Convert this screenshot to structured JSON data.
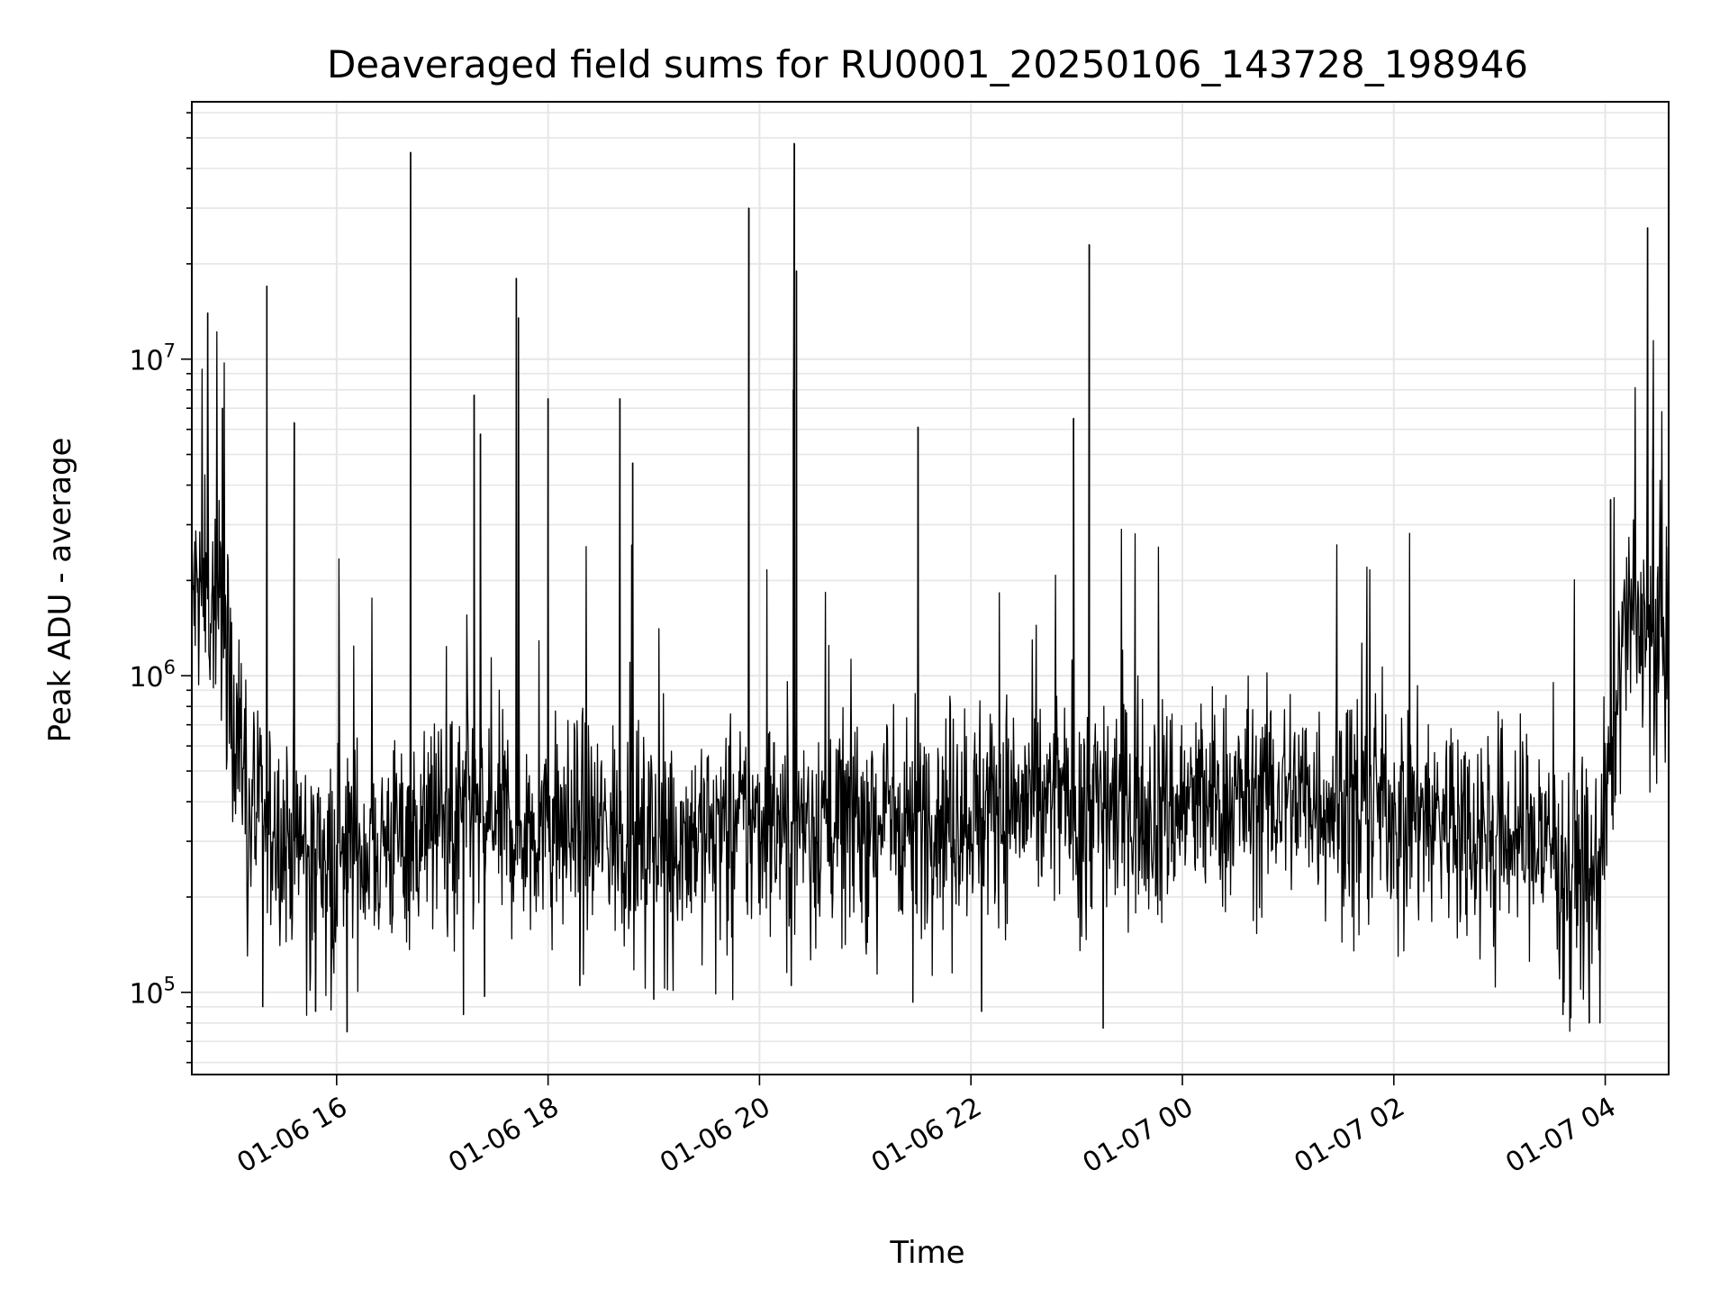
{
  "chart_data": {
    "type": "line",
    "title": "Deaveraged field sums for RU0001_20250106_143728_198946",
    "xlabel": "Time",
    "ylabel": "Peak ADU - average",
    "yscale": "log",
    "ylim": [
      55000,
      65000000
    ],
    "xlim_hours": [
      14.63,
      28.6
    ],
    "x_ticks": [
      {
        "hour": 16,
        "label": "01-06 16"
      },
      {
        "hour": 18,
        "label": "01-06 18"
      },
      {
        "hour": 20,
        "label": "01-06 20"
      },
      {
        "hour": 22,
        "label": "01-06 22"
      },
      {
        "hour": 24,
        "label": "01-07 00"
      },
      {
        "hour": 26,
        "label": "01-07 02"
      },
      {
        "hour": 28,
        "label": "01-07 04"
      }
    ],
    "y_ticks": [
      {
        "value": 100000,
        "base": "10",
        "exp": "5"
      },
      {
        "value": 1000000,
        "base": "10",
        "exp": "6"
      },
      {
        "value": 10000000,
        "base": "10",
        "exp": "7"
      }
    ],
    "grid": true,
    "series": [
      {
        "name": "Peak ADU - average",
        "color": "#000000",
        "baseline": {
          "hours": [
            14.63,
            14.9,
            15.0,
            15.2,
            15.6,
            16.0,
            16.5,
            17.0,
            18.0,
            19.0,
            20.0,
            21.0,
            22.0,
            23.0,
            24.0,
            25.0,
            26.0,
            26.5,
            27.0,
            27.5,
            27.9,
            28.05,
            28.2,
            28.6
          ],
          "values": [
            1800000,
            1700000,
            900000,
            350000,
            300000,
            270000,
            300000,
            350000,
            330000,
            310000,
            340000,
            360000,
            380000,
            400000,
            390000,
            420000,
            390000,
            350000,
            320000,
            300000,
            220000,
            500000,
            1500000,
            1300000
          ]
        },
        "spikes": [
          {
            "hour": 14.78,
            "value": 14000000
          },
          {
            "hour": 14.92,
            "value": 7000000
          },
          {
            "hour": 15.34,
            "value": 17000000
          },
          {
            "hour": 15.6,
            "value": 6300000
          },
          {
            "hour": 16.7,
            "value": 45000000
          },
          {
            "hour": 17.3,
            "value": 7700000
          },
          {
            "hour": 17.36,
            "value": 5800000
          },
          {
            "hour": 17.7,
            "value": 18000000
          },
          {
            "hour": 17.72,
            "value": 13500000
          },
          {
            "hour": 18.0,
            "value": 7500000
          },
          {
            "hour": 18.68,
            "value": 7500000
          },
          {
            "hour": 18.8,
            "value": 4700000
          },
          {
            "hour": 19.9,
            "value": 30000000
          },
          {
            "hour": 20.32,
            "value": 8000000
          },
          {
            "hour": 20.33,
            "value": 48000000
          },
          {
            "hour": 20.35,
            "value": 19000000
          },
          {
            "hour": 21.5,
            "value": 6100000
          },
          {
            "hour": 22.97,
            "value": 6500000
          },
          {
            "hour": 23.12,
            "value": 23000000
          },
          {
            "hour": 28.4,
            "value": 26000000
          },
          {
            "hour": 28.45,
            "value": 4500000
          },
          {
            "hour": 28.05,
            "value": 3600000
          }
        ],
        "dips": [
          {
            "hour": 15.3,
            "value": 90000
          },
          {
            "hour": 15.8,
            "value": 87000
          },
          {
            "hour": 16.1,
            "value": 75000
          },
          {
            "hour": 17.2,
            "value": 85000
          },
          {
            "hour": 17.4,
            "value": 97000
          },
          {
            "hour": 18.3,
            "value": 105000
          },
          {
            "hour": 19.0,
            "value": 95000
          },
          {
            "hour": 20.3,
            "value": 105000
          },
          {
            "hour": 21.45,
            "value": 93000
          },
          {
            "hour": 22.1,
            "value": 87000
          },
          {
            "hour": 23.25,
            "value": 77000
          },
          {
            "hour": 27.6,
            "value": 85000
          },
          {
            "hour": 27.85,
            "value": 80000
          },
          {
            "hour": 27.95,
            "value": 80000
          }
        ]
      }
    ]
  }
}
